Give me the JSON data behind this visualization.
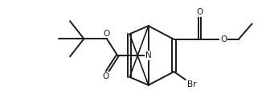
{
  "bg_color": "#ffffff",
  "line_color": "#1a1a1a",
  "lw": 1.4,
  "fig_width": 3.36,
  "fig_height": 1.38,
  "dpi": 100,
  "xlim": [
    0,
    10
  ],
  "ylim": [
    0,
    4
  ]
}
